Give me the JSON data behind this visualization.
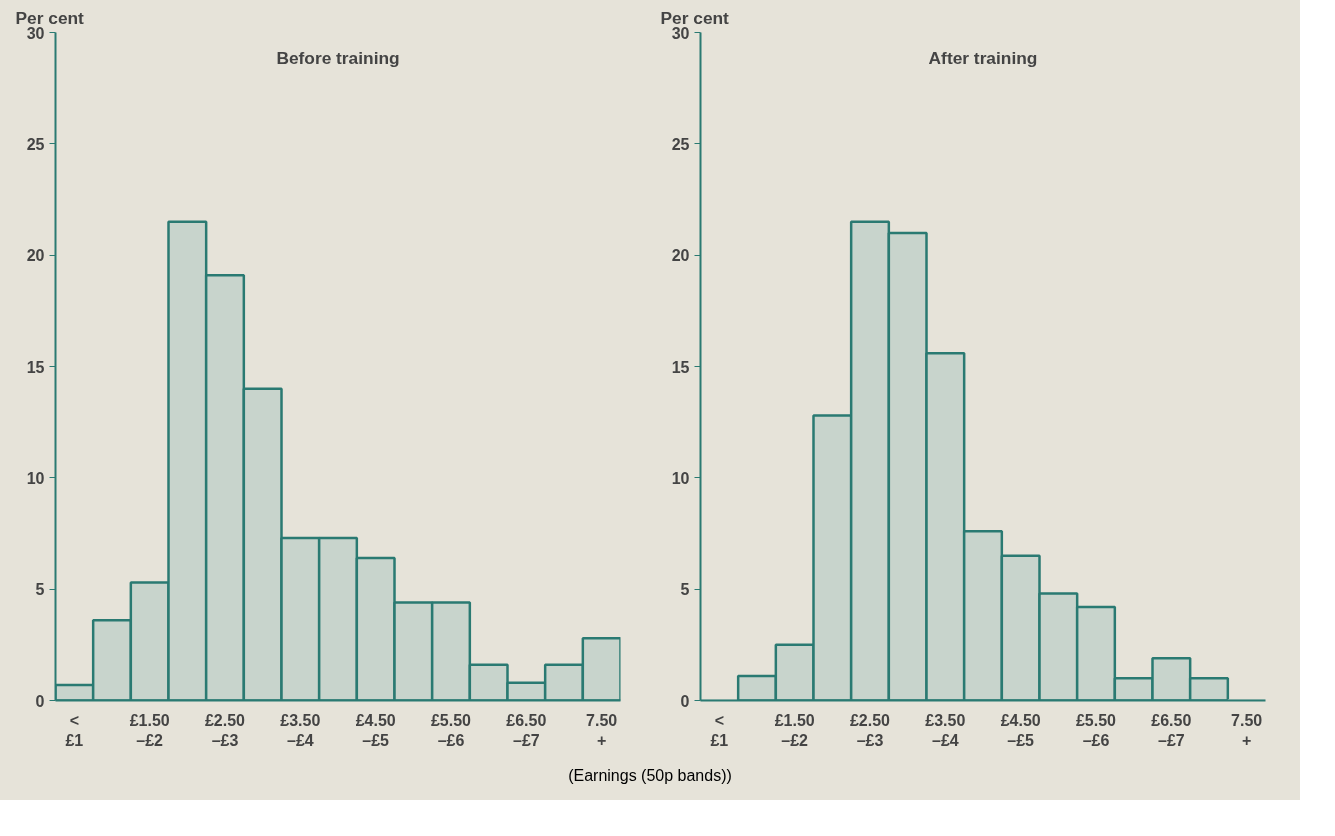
{
  "chart_data": [
    {
      "type": "bar",
      "title": "Before training",
      "ylabel": "Per cent",
      "xlabel": "(Earnings (50p bands))",
      "categories": [
        "<\n£1",
        null,
        "£1.50\n–£2",
        null,
        "£2.50\n–£3",
        null,
        "£3.50\n–£4",
        null,
        "£4.50\n–£5",
        null,
        "£5.50\n–£6",
        null,
        "£6.50\n–£7",
        null,
        "7.50\n+"
      ],
      "values": [
        0.7,
        3.6,
        5.3,
        21.5,
        19.1,
        14.0,
        7.3,
        7.3,
        6.4,
        4.4,
        4.4,
        1.6,
        0.8,
        1.6,
        2.8
      ],
      "color": "#c8d4cc",
      "ylim": [
        0,
        30
      ],
      "yticks": [
        0,
        5,
        10,
        15,
        20,
        25,
        30
      ]
    },
    {
      "type": "bar",
      "title": "After training",
      "ylabel": "Per cent",
      "categories": [
        "<\n£1",
        null,
        "£1.50\n–£2",
        null,
        "£2.50\n–£3",
        null,
        "£3.50\n–£4",
        null,
        "£4.50\n–£5",
        null,
        "£5.50\n–£6",
        null,
        "£6.50\n–£7",
        null,
        "7.50\n+"
      ],
      "values": [
        0,
        1.1,
        2.5,
        12.8,
        21.5,
        21.0,
        15.6,
        7.6,
        6.5,
        4.8,
        4.2,
        1.0,
        1.9,
        1.0,
        0
      ],
      "color": "#c8d4cc",
      "ylim": [
        0,
        30
      ],
      "yticks": [
        0,
        5,
        10,
        15,
        20,
        25,
        30
      ]
    }
  ]
}
